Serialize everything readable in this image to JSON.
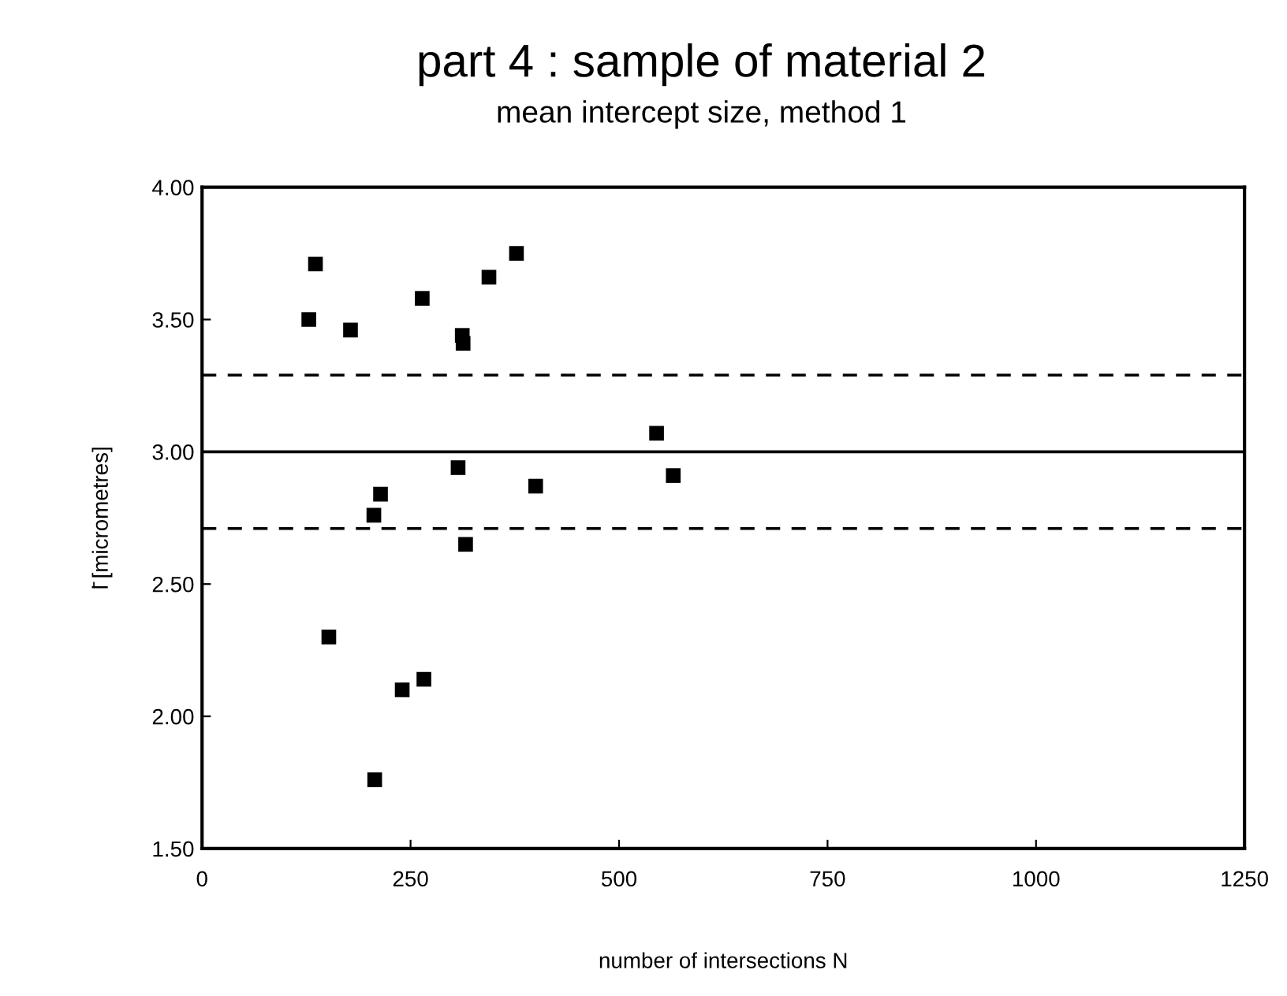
{
  "chart_data": {
    "type": "scatter",
    "title": "part 4 : sample of material 2",
    "subtitle": "mean intercept size, method 1",
    "xlabel": "number of intersections N",
    "ylabel": "l̄ [micrometres]",
    "x": [
      128,
      136,
      178,
      264,
      312,
      313,
      344,
      377,
      545,
      565,
      307,
      400,
      214,
      206,
      316,
      152,
      240,
      266,
      207
    ],
    "values": [
      3.5,
      3.71,
      3.46,
      3.58,
      3.44,
      3.41,
      3.66,
      3.75,
      3.07,
      2.91,
      2.94,
      2.87,
      2.84,
      2.76,
      2.65,
      2.3,
      2.1,
      2.14,
      1.76
    ],
    "color": "#000000",
    "marker": "square",
    "xlim": [
      0,
      1250
    ],
    "xticks": [
      0,
      250,
      500,
      750,
      1000,
      1250
    ],
    "ylim": [
      1.5,
      4.0
    ],
    "yticks": [
      {
        "value": 1.5,
        "label": "1.50"
      },
      {
        "value": 2.0,
        "label": "2.00"
      },
      {
        "value": 2.5,
        "label": "2.50"
      },
      {
        "value": 3.0,
        "label": "3.00"
      },
      {
        "value": 3.5,
        "label": "3.50"
      },
      {
        "value": 4.0,
        "label": "4.00"
      }
    ],
    "ref_lines": [
      {
        "axis": "y",
        "value": 3.0,
        "line_style": "solid"
      },
      {
        "axis": "y",
        "value": 3.29,
        "line_style": "dashed"
      },
      {
        "axis": "y",
        "value": 2.71,
        "line_style": "dashed"
      }
    ],
    "grid": false
  }
}
